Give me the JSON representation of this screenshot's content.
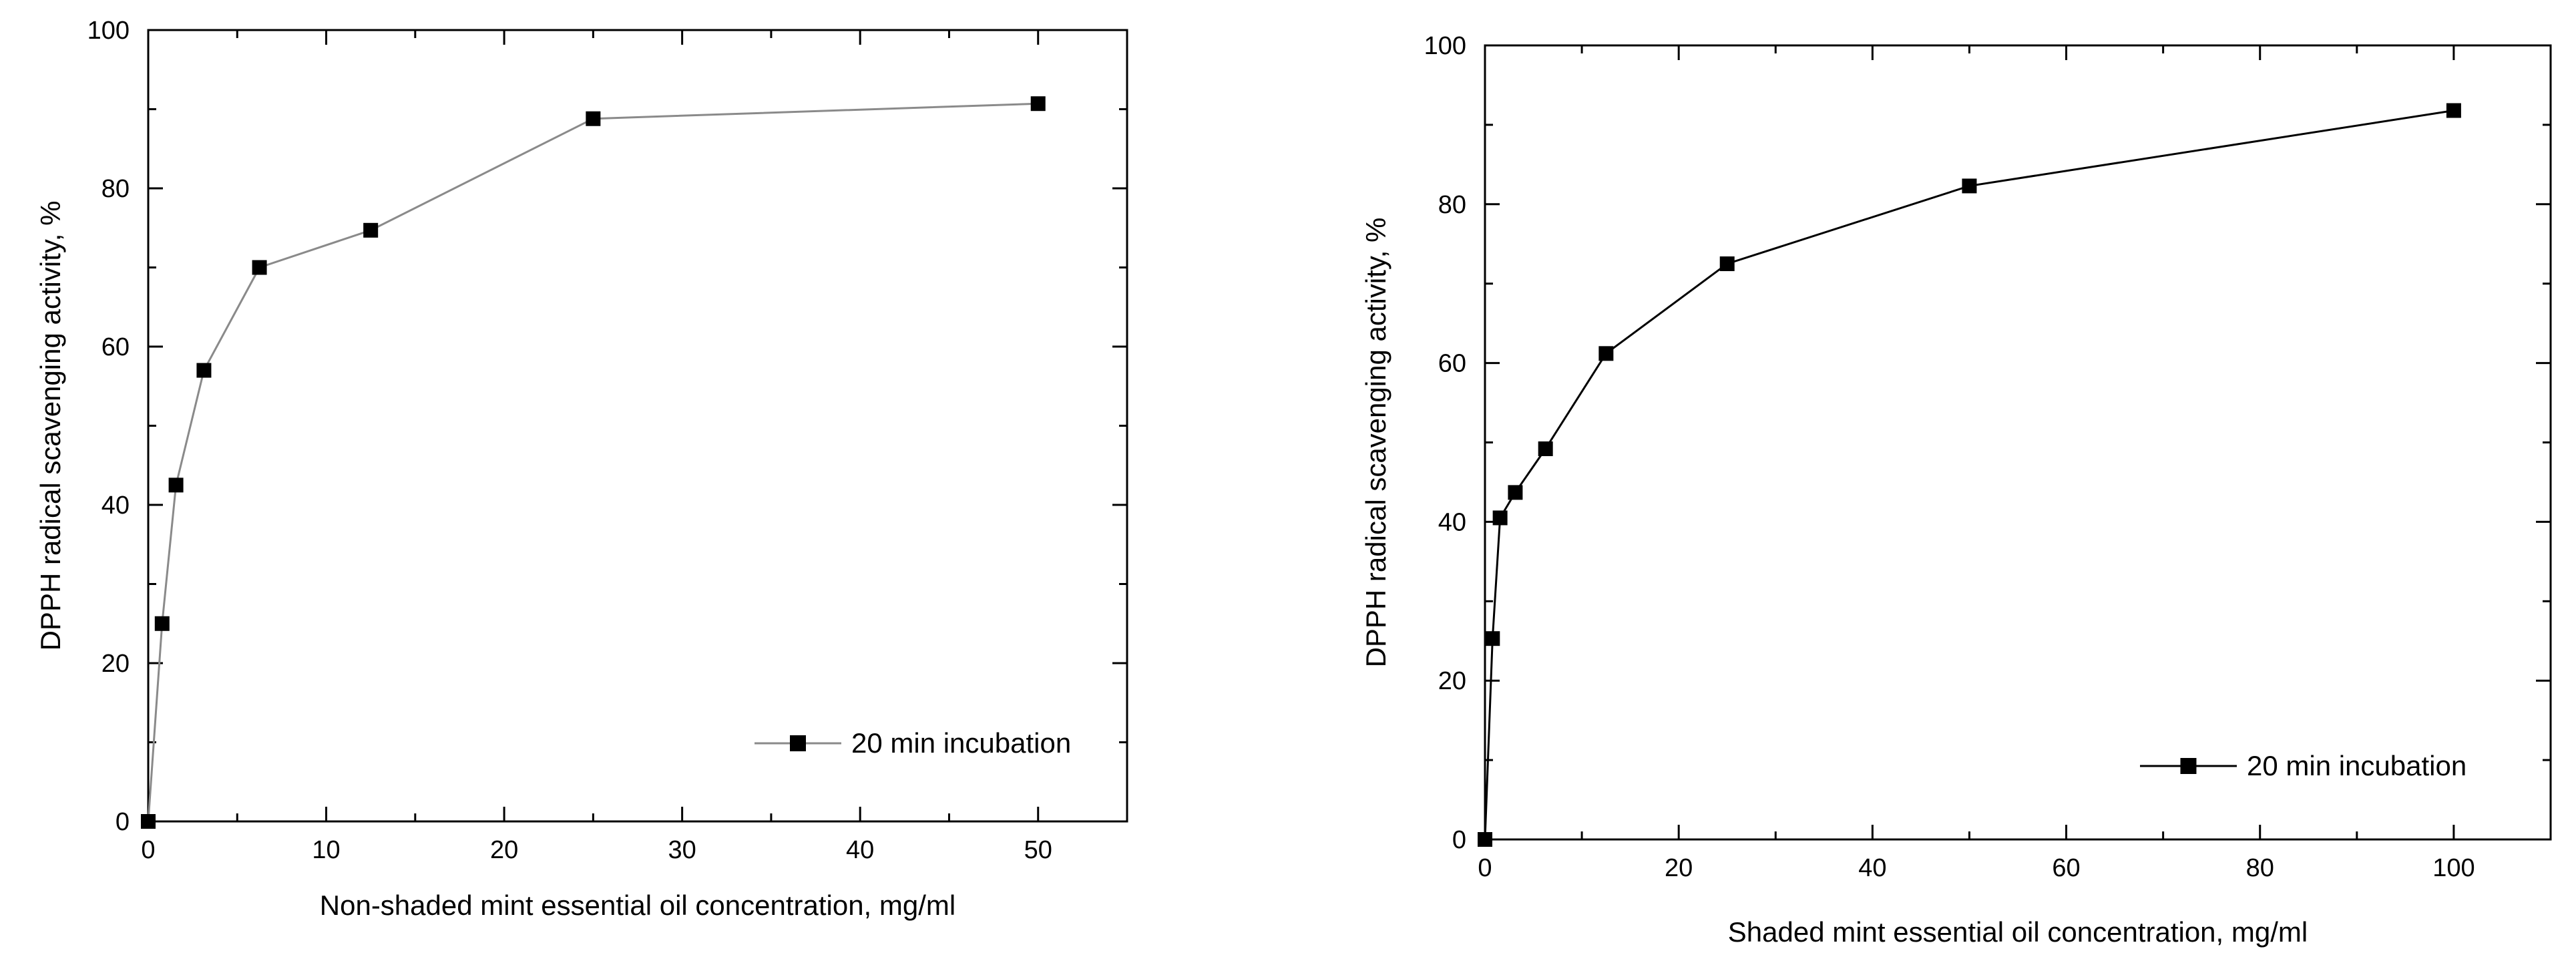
{
  "chart_data": [
    {
      "type": "line",
      "title": "",
      "xlabel": "Non-shaded mint essential oil concentration, mg/ml",
      "ylabel": "DPPH radical scavenging activity, %",
      "xlim": [
        0,
        55
      ],
      "ylim": [
        0,
        100
      ],
      "xticks": [
        0,
        10,
        20,
        30,
        40,
        50
      ],
      "yticks": [
        0,
        20,
        40,
        60,
        80,
        100
      ],
      "grid": false,
      "legend_position": "bottom-right",
      "line_color": "#8a8a8a",
      "marker_color": "#000000",
      "series": [
        {
          "name": "20 min incubation",
          "x": [
            0,
            0.78,
            1.56,
            3.13,
            6.25,
            12.5,
            25,
            50
          ],
          "y": [
            0,
            25,
            42.5,
            57,
            70,
            74.7,
            88.8,
            90.7
          ]
        }
      ]
    },
    {
      "type": "line",
      "title": "",
      "xlabel": "Shaded mint essential oil concentration, mg/ml",
      "ylabel": "DPPH radical scavenging activity, %",
      "xlim": [
        0,
        110
      ],
      "ylim": [
        0,
        100
      ],
      "xticks": [
        0,
        20,
        40,
        60,
        80,
        100
      ],
      "yticks": [
        0,
        20,
        40,
        60,
        80,
        100
      ],
      "grid": false,
      "legend_position": "bottom-right",
      "line_color": "#000000",
      "marker_color": "#000000",
      "series": [
        {
          "name": "20 min incubation",
          "x": [
            0,
            0.78,
            1.56,
            3.13,
            6.25,
            12.5,
            25,
            50,
            100
          ],
          "y": [
            0,
            25.3,
            40.5,
            43.7,
            49.2,
            61.2,
            72.5,
            82.3,
            91.8
          ]
        }
      ]
    }
  ]
}
